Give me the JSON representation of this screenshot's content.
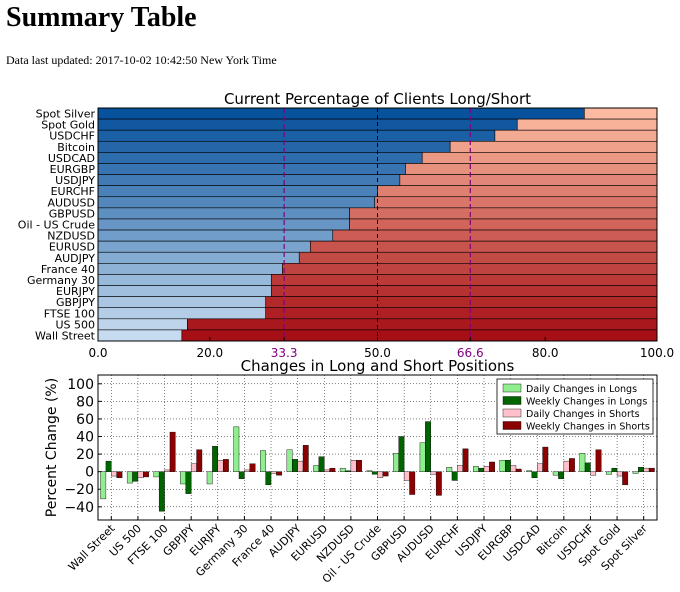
{
  "page": {
    "title": "Summary Table",
    "updated_label": "Data last updated: 2017-10-02 10:42:50 New York Time"
  },
  "colors": {
    "long_light": "#c6dbef",
    "long_dark": "#08519c",
    "short_light": "#fcbba1",
    "short_dark": "#a50f15",
    "reference_line": "#800080",
    "daily_longs": "#90ee90",
    "weekly_longs": "#006400",
    "daily_shorts": "#ffc0cb",
    "weekly_shorts": "#8b0000"
  },
  "chart_data": [
    {
      "type": "bar",
      "orientation": "horizontal-stacked",
      "title": "Current Percentage of Clients Long/Short",
      "categories": [
        "Spot Silver",
        "Spot Gold",
        "USDCHF",
        "Bitcoin",
        "USDCAD",
        "EURGBP",
        "USDJPY",
        "EURCHF",
        "AUDUSD",
        "GBPUSD",
        "Oil - US Crude",
        "NZDUSD",
        "EURUSD",
        "AUDJPY",
        "France 40",
        "Germany 30",
        "EURJPY",
        "GBPJPY",
        "FTSE 100",
        "US 500",
        "Wall Street"
      ],
      "series": [
        {
          "name": "Long",
          "values": [
            87,
            75,
            71,
            63,
            58,
            55,
            54,
            50,
            49.5,
            45,
            45,
            42,
            38,
            36,
            33,
            31,
            31,
            30,
            30,
            16,
            15
          ]
        },
        {
          "name": "Short",
          "values": [
            13,
            25,
            29,
            37,
            42,
            45,
            46,
            50,
            50.5,
            55,
            55,
            58,
            62,
            64,
            67,
            69,
            69,
            70,
            70,
            84,
            85
          ]
        }
      ],
      "xlim": [
        0,
        100
      ],
      "xticks": [
        "0.0",
        "20.0",
        "33.3",
        "50.0",
        "66.6",
        "80.0",
        "100.0"
      ],
      "reference_lines": [
        33.3,
        66.6
      ],
      "center_line": 50,
      "grid": true
    },
    {
      "type": "bar",
      "title": "Changes in Long and Short Positions",
      "ylabel": "Percent Change (%)",
      "xlabel": "",
      "ylim": [
        -55,
        110
      ],
      "yticks": [
        "−40",
        "−20",
        "0",
        "20",
        "40",
        "60",
        "80",
        "100"
      ],
      "categories": [
        "Wall Street",
        "US 500",
        "FTSE 100",
        "GBPJPY",
        "EURJPY",
        "Germany 30",
        "France 40",
        "AUDJPY",
        "EURUSD",
        "NZDUSD",
        "Oil - US Crude",
        "GBPUSD",
        "AUDUSD",
        "EURCHF",
        "USDJPY",
        "EURGBP",
        "USDCAD",
        "Bitcoin",
        "USDCHF",
        "Spot Gold",
        "Spot Silver"
      ],
      "series": [
        {
          "name": "Daily Changes in Longs",
          "values": [
            -31,
            -13,
            -6,
            -14,
            -14,
            51,
            24,
            25,
            7,
            4,
            1,
            21,
            33,
            5,
            6,
            13,
            1,
            -4,
            21,
            -3,
            -2
          ]
        },
        {
          "name": "Weekly Changes in Longs",
          "values": [
            12,
            -11,
            -45,
            -25,
            29,
            -8,
            -15,
            14,
            17,
            1,
            -3,
            40,
            57,
            -10,
            4,
            13,
            -7,
            -8,
            10,
            4,
            5
          ]
        },
        {
          "name": "Daily Changes in Shorts",
          "values": [
            -5,
            -7,
            2,
            9,
            13,
            2,
            -2,
            12,
            2,
            13,
            -7,
            -10,
            -3,
            7,
            6,
            7,
            9,
            12,
            -4,
            -5,
            4
          ]
        },
        {
          "name": "Weekly Changes in Shorts",
          "values": [
            -7,
            -6,
            45,
            25,
            14,
            9,
            -4,
            30,
            4,
            13,
            -5,
            -26,
            -27,
            26,
            11,
            3,
            28,
            15,
            25,
            -15,
            4
          ]
        }
      ],
      "legend_position": "top-right",
      "grid": true
    }
  ]
}
